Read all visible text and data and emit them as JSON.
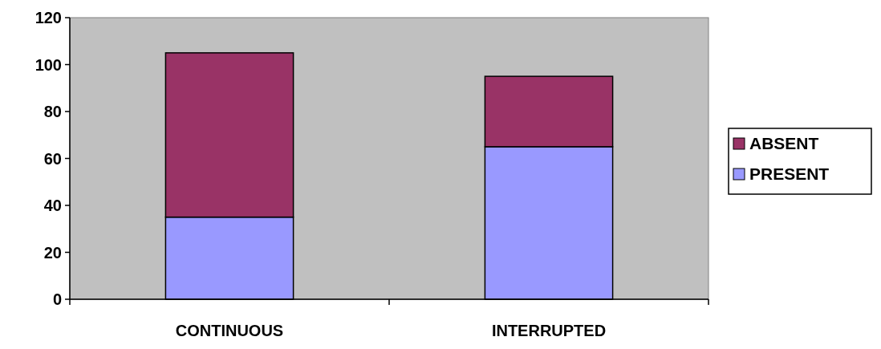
{
  "chart_data": {
    "type": "bar",
    "stacked": true,
    "categories": [
      "CONTINUOUS",
      "INTERRUPTED"
    ],
    "series": [
      {
        "name": "PRESENT",
        "color": "#9999ff",
        "values": [
          35,
          65
        ]
      },
      {
        "name": "ABSENT",
        "color": "#993366",
        "values": [
          70,
          30
        ]
      }
    ],
    "ylim": [
      0,
      120
    ],
    "yticks": [
      0,
      20,
      40,
      60,
      80,
      100,
      120
    ],
    "grid": false,
    "legend": "right"
  }
}
